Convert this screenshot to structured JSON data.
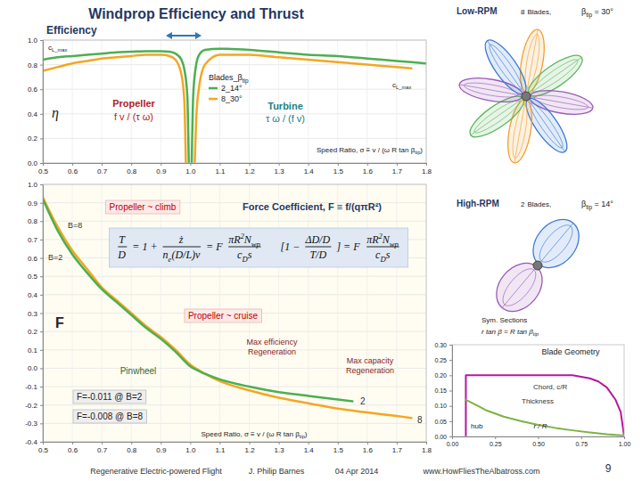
{
  "title": "Windprop Efficiency and Thrust",
  "chart_data": [
    {
      "type": "line",
      "title": "Efficiency",
      "x_label": [
        "Speed Ratio, σ ≡ v / (ω R tan β",
        {
          "sub": "tip"
        },
        ")"
      ],
      "xlim": [
        0.5,
        1.8
      ],
      "ylim": [
        0,
        1
      ],
      "xticks": [
        0.5,
        0.6,
        0.7,
        0.8,
        0.9,
        {
          "value": 1,
          "label": "1.0"
        },
        1.1,
        1.2,
        1.3,
        1.4,
        1.5,
        1.6,
        1.7,
        1.8
      ],
      "yticks": [
        {
          "value": 0,
          "label": "0.0"
        },
        0.2,
        0.4,
        0.6,
        0.8,
        {
          "value": 1,
          "label": "1.0"
        }
      ],
      "grid": true,
      "legend": "top",
      "legend_title": [
        "Blades_β",
        {
          "sub": "tip"
        }
      ],
      "series": [
        {
          "name": "2_14°",
          "color": "#4caf50",
          "x": [
            0.5,
            0.55,
            0.6,
            0.65,
            0.7,
            0.75,
            0.8,
            0.85,
            0.9,
            0.93,
            0.95,
            0.97,
            0.98,
            0.99,
            0.995,
            null,
            1.005,
            1.01,
            1.02,
            1.03,
            1.05,
            1.1,
            1.2,
            1.3,
            1.4,
            1.5,
            1.6,
            1.7,
            1.8
          ],
          "values": [
            0.84,
            0.86,
            0.87,
            0.88,
            0.89,
            0.9,
            0.905,
            0.91,
            0.91,
            0.905,
            0.89,
            0.84,
            0.76,
            0.55,
            0.0,
            null,
            0.0,
            0.55,
            0.8,
            0.88,
            0.92,
            0.93,
            0.92,
            0.9,
            0.88,
            0.87,
            0.85,
            0.83,
            0.81
          ]
        },
        {
          "name": "8_30°",
          "color": "#f5a623",
          "x": [
            0.5,
            0.55,
            0.6,
            0.65,
            0.7,
            0.75,
            0.8,
            0.85,
            0.9,
            0.93,
            0.95,
            0.97,
            0.98,
            0.985,
            null,
            1.015,
            1.02,
            1.03,
            1.05,
            1.1,
            1.2,
            1.3,
            1.4,
            1.5,
            1.6,
            1.7,
            1.75
          ],
          "values": [
            0.75,
            0.78,
            0.81,
            0.83,
            0.85,
            0.86,
            0.87,
            0.88,
            0.88,
            0.87,
            0.84,
            0.72,
            0.5,
            0.0,
            null,
            0.0,
            0.35,
            0.62,
            0.8,
            0.88,
            0.88,
            0.86,
            0.84,
            0.82,
            0.8,
            0.78,
            0.77
          ]
        }
      ],
      "annotations": [
        [
          "c",
          {
            "sub": "L_max"
          }
        ],
        [
          "c",
          {
            "sub": "L_max"
          }
        ],
        "η",
        "Propeller",
        "f v / (τ ω)",
        "Turbine",
        "τ ω / (f v)"
      ]
    },
    {
      "type": "line",
      "title": "Force Coefficient, F ≡ f/(qπR²)",
      "x_label": [
        "Speed Ratio, σ ≡ v / (ω R tan β",
        {
          "sub": "tip"
        },
        ")"
      ],
      "xlim": [
        0.5,
        1.8
      ],
      "ylim": [
        -0.4,
        1
      ],
      "xticks": [
        0.5,
        0.6,
        0.7,
        0.8,
        0.9,
        {
          "value": 1,
          "label": "1.0"
        },
        1.1,
        1.2,
        1.3,
        1.4,
        1.5,
        1.6,
        1.7,
        1.8
      ],
      "yticks": [
        -0.4,
        -0.3,
        -0.2,
        -0.1,
        {
          "value": 0,
          "label": "0.0"
        },
        0.1,
        0.2,
        0.3,
        0.4,
        0.5,
        0.6,
        0.7,
        0.8,
        0.9,
        {
          "value": 1,
          "label": "1.0"
        }
      ],
      "grid": true,
      "series": [
        {
          "name": "B=8",
          "color": "#f5a623",
          "x": [
            0.5,
            0.55,
            0.6,
            0.65,
            0.7,
            0.75,
            0.8,
            0.85,
            0.9,
            0.95,
            1.0,
            1.05,
            1.1,
            1.2,
            1.3,
            1.4,
            1.5,
            1.6,
            1.7,
            1.75
          ],
          "values": [
            0.93,
            0.77,
            0.64,
            0.54,
            0.44,
            0.37,
            0.3,
            0.23,
            0.17,
            0.1,
            0.02,
            -0.03,
            -0.07,
            -0.12,
            -0.16,
            -0.19,
            -0.22,
            -0.24,
            -0.26,
            -0.27
          ]
        },
        {
          "name": "B=2",
          "color": "#4caf50",
          "x": [
            0.5,
            0.55,
            0.6,
            0.65,
            0.7,
            0.75,
            0.8,
            0.85,
            0.9,
            0.95,
            1.0,
            1.05,
            1.1,
            1.2,
            1.3,
            1.4,
            1.5,
            1.55
          ],
          "values": [
            0.92,
            0.75,
            0.62,
            0.52,
            0.43,
            0.36,
            0.29,
            0.22,
            0.16,
            0.09,
            0.01,
            -0.03,
            -0.06,
            -0.1,
            -0.13,
            -0.15,
            -0.17,
            -0.18
          ]
        }
      ],
      "annotations": [
        "Propeller ~ climb",
        "F",
        "Propeller ~ cruise",
        "Max efficiency",
        "Regeneration",
        "Max capacity",
        "Regeneration",
        "Pinwheel",
        "F=-0.011 @ B=2",
        "F=-0.008 @ B=8",
        "2",
        "8"
      ],
      "equation": [
        {
          "num": "T",
          "den": "D"
        },
        "= 1 +",
        {
          "num": "ż",
          "den": [
            "n",
            {
              "sub": "e"
            },
            "(D/L)v"
          ]
        },
        "= F",
        {
          "num": [
            "πR",
            {
              "sup": "2"
            },
            "N",
            {
              "sub": "wp"
            }
          ],
          "den": [
            "c",
            {
              "sub": "D"
            },
            "s"
          ]
        },
        "[1 −",
        {
          "num": "ΔD/D",
          "den": "T/D"
        },
        "] = F",
        {
          "num": [
            "πR",
            {
              "sup": "2"
            },
            "N",
            {
              "sub": "wp"
            }
          ],
          "den": [
            "c",
            {
              "sub": "D"
            },
            "s"
          ]
        }
      ]
    },
    {
      "type": "line",
      "title": "Blade Geometry",
      "x_label": "r / R",
      "xlim": [
        0,
        1
      ],
      "ylim": [
        0,
        0.3
      ],
      "xticks": [
        {
          "value": 0,
          "label": "0.00"
        },
        0.25,
        {
          "value": 0.5,
          "label": "0.50"
        },
        0.75,
        {
          "value": 1,
          "label": "1.00"
        }
      ],
      "yticks": [
        {
          "value": 0,
          "label": "0.00"
        },
        0.05,
        {
          "value": 0.1,
          "label": "0.10"
        },
        0.15,
        {
          "value": 0.2,
          "label": "0.20"
        },
        0.25,
        {
          "value": 0.3,
          "label": "0.30"
        }
      ],
      "grid": false,
      "series": [
        {
          "name": "Chord, c/R",
          "color": "#b5179e",
          "x": [
            0.08,
            0.08,
            0.2,
            0.3,
            0.4,
            0.5,
            0.6,
            0.7,
            0.8,
            0.85,
            0.9,
            0.95,
            0.98,
            1.0
          ],
          "values": [
            0,
            0.2,
            0.2,
            0.2,
            0.2,
            0.2,
            0.2,
            0.2,
            0.19,
            0.18,
            0.16,
            0.12,
            0.08,
            0
          ]
        },
        {
          "name": "Thickness",
          "color": "#7cb342",
          "x": [
            0.08,
            0.15,
            0.2,
            0.3,
            0.4,
            0.5,
            0.6,
            0.7,
            0.8,
            0.9,
            1.0
          ],
          "values": [
            0.12,
            0.1,
            0.085,
            0.065,
            0.05,
            0.038,
            0.028,
            0.02,
            0.013,
            0.007,
            0.003
          ]
        }
      ],
      "annotations": [
        "Sym. Sections",
        [
          "r tan β = R tan β",
          {
            "sub": "tip"
          }
        ],
        "hub"
      ]
    }
  ],
  "illustrations": [
    {
      "label": "Low-RPM",
      "blades": 8,
      "blades_label": "Blades,",
      "beta": [
        "β",
        {
          "sub": "tip"
        },
        " = 30°"
      ]
    },
    {
      "label": "High-RPM",
      "blades": 2,
      "blades_label": "Blades,",
      "beta": [
        "β",
        {
          "sub": "tip"
        },
        " = 14°"
      ]
    }
  ],
  "footer": [
    "Regenerative Electric-powered Flight",
    "J. Philip Barnes",
    "04 Apr 2014",
    "www.HowFliesTheAlbatross.com",
    "9"
  ]
}
